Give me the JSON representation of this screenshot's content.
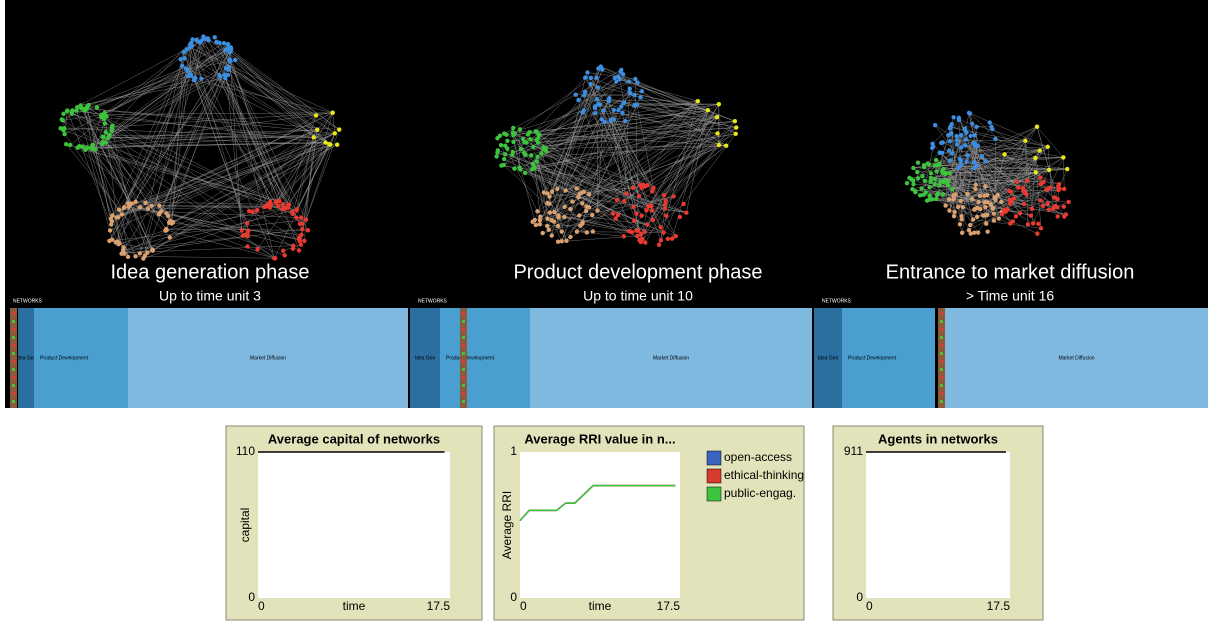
{
  "phases": [
    {
      "title": "Idea generation phase",
      "subtitle": "Up to time unit 3",
      "header": "NETWORKS",
      "segments": [
        "Idea Gen",
        "Product Development",
        "Market Diffusion"
      ]
    },
    {
      "title": "Product development phase",
      "subtitle": "Up to time unit 10",
      "header": "NETWORKS",
      "segments": [
        "Idea Gen",
        "Product Development",
        "Market Diffusion"
      ]
    },
    {
      "title": "Entrance to market diffusion",
      "subtitle": "> Time unit 16",
      "header": "NETWORKS",
      "segments": [
        "Idea Gen",
        "Product Development",
        "Market Diffusion"
      ]
    }
  ],
  "plots": [
    {
      "type": "line",
      "title": "Average capital of networks",
      "y_label": "capital",
      "x_label": "time",
      "xlim": [
        0,
        17.5
      ],
      "ylim": [
        0,
        110
      ],
      "xticks": [
        0,
        17.5
      ],
      "yticks": [
        0,
        110
      ],
      "x": [
        0,
        17
      ],
      "series": [
        {
          "color": "#000000",
          "values": [
            110,
            110
          ]
        }
      ]
    },
    {
      "type": "line",
      "title": "Average RRI value in n...",
      "y_label": "Average RRI",
      "x_label": "time",
      "xlim": [
        0,
        17.5
      ],
      "ylim": [
        0,
        1
      ],
      "xticks": [
        0,
        17.5
      ],
      "yticks": [
        0,
        1
      ],
      "x": [
        0,
        1,
        4,
        5,
        6,
        8,
        17
      ],
      "series": [
        {
          "name": "open-access",
          "color": "#3a64c0",
          "values": [
            0.53,
            0.6,
            0.6,
            0.65,
            0.65,
            0.77,
            0.77
          ]
        },
        {
          "name": "ethical-thinking",
          "color": "#d83a30",
          "values": [
            0.53,
            0.6,
            0.6,
            0.65,
            0.65,
            0.77,
            0.77
          ]
        },
        {
          "name": "public-engag.",
          "color": "#3cc43c",
          "values": [
            0.53,
            0.6,
            0.6,
            0.65,
            0.65,
            0.77,
            0.77
          ]
        }
      ]
    },
    {
      "type": "line",
      "title": "Agents in networks",
      "xlim": [
        0,
        17.5
      ],
      "ylim": [
        0,
        911
      ],
      "xticks": [
        0,
        17.5
      ],
      "yticks": [
        0,
        911
      ],
      "x": [
        0,
        17
      ],
      "series": [
        {
          "color": "#000000",
          "values": [
            911,
            911
          ]
        }
      ]
    }
  ]
}
